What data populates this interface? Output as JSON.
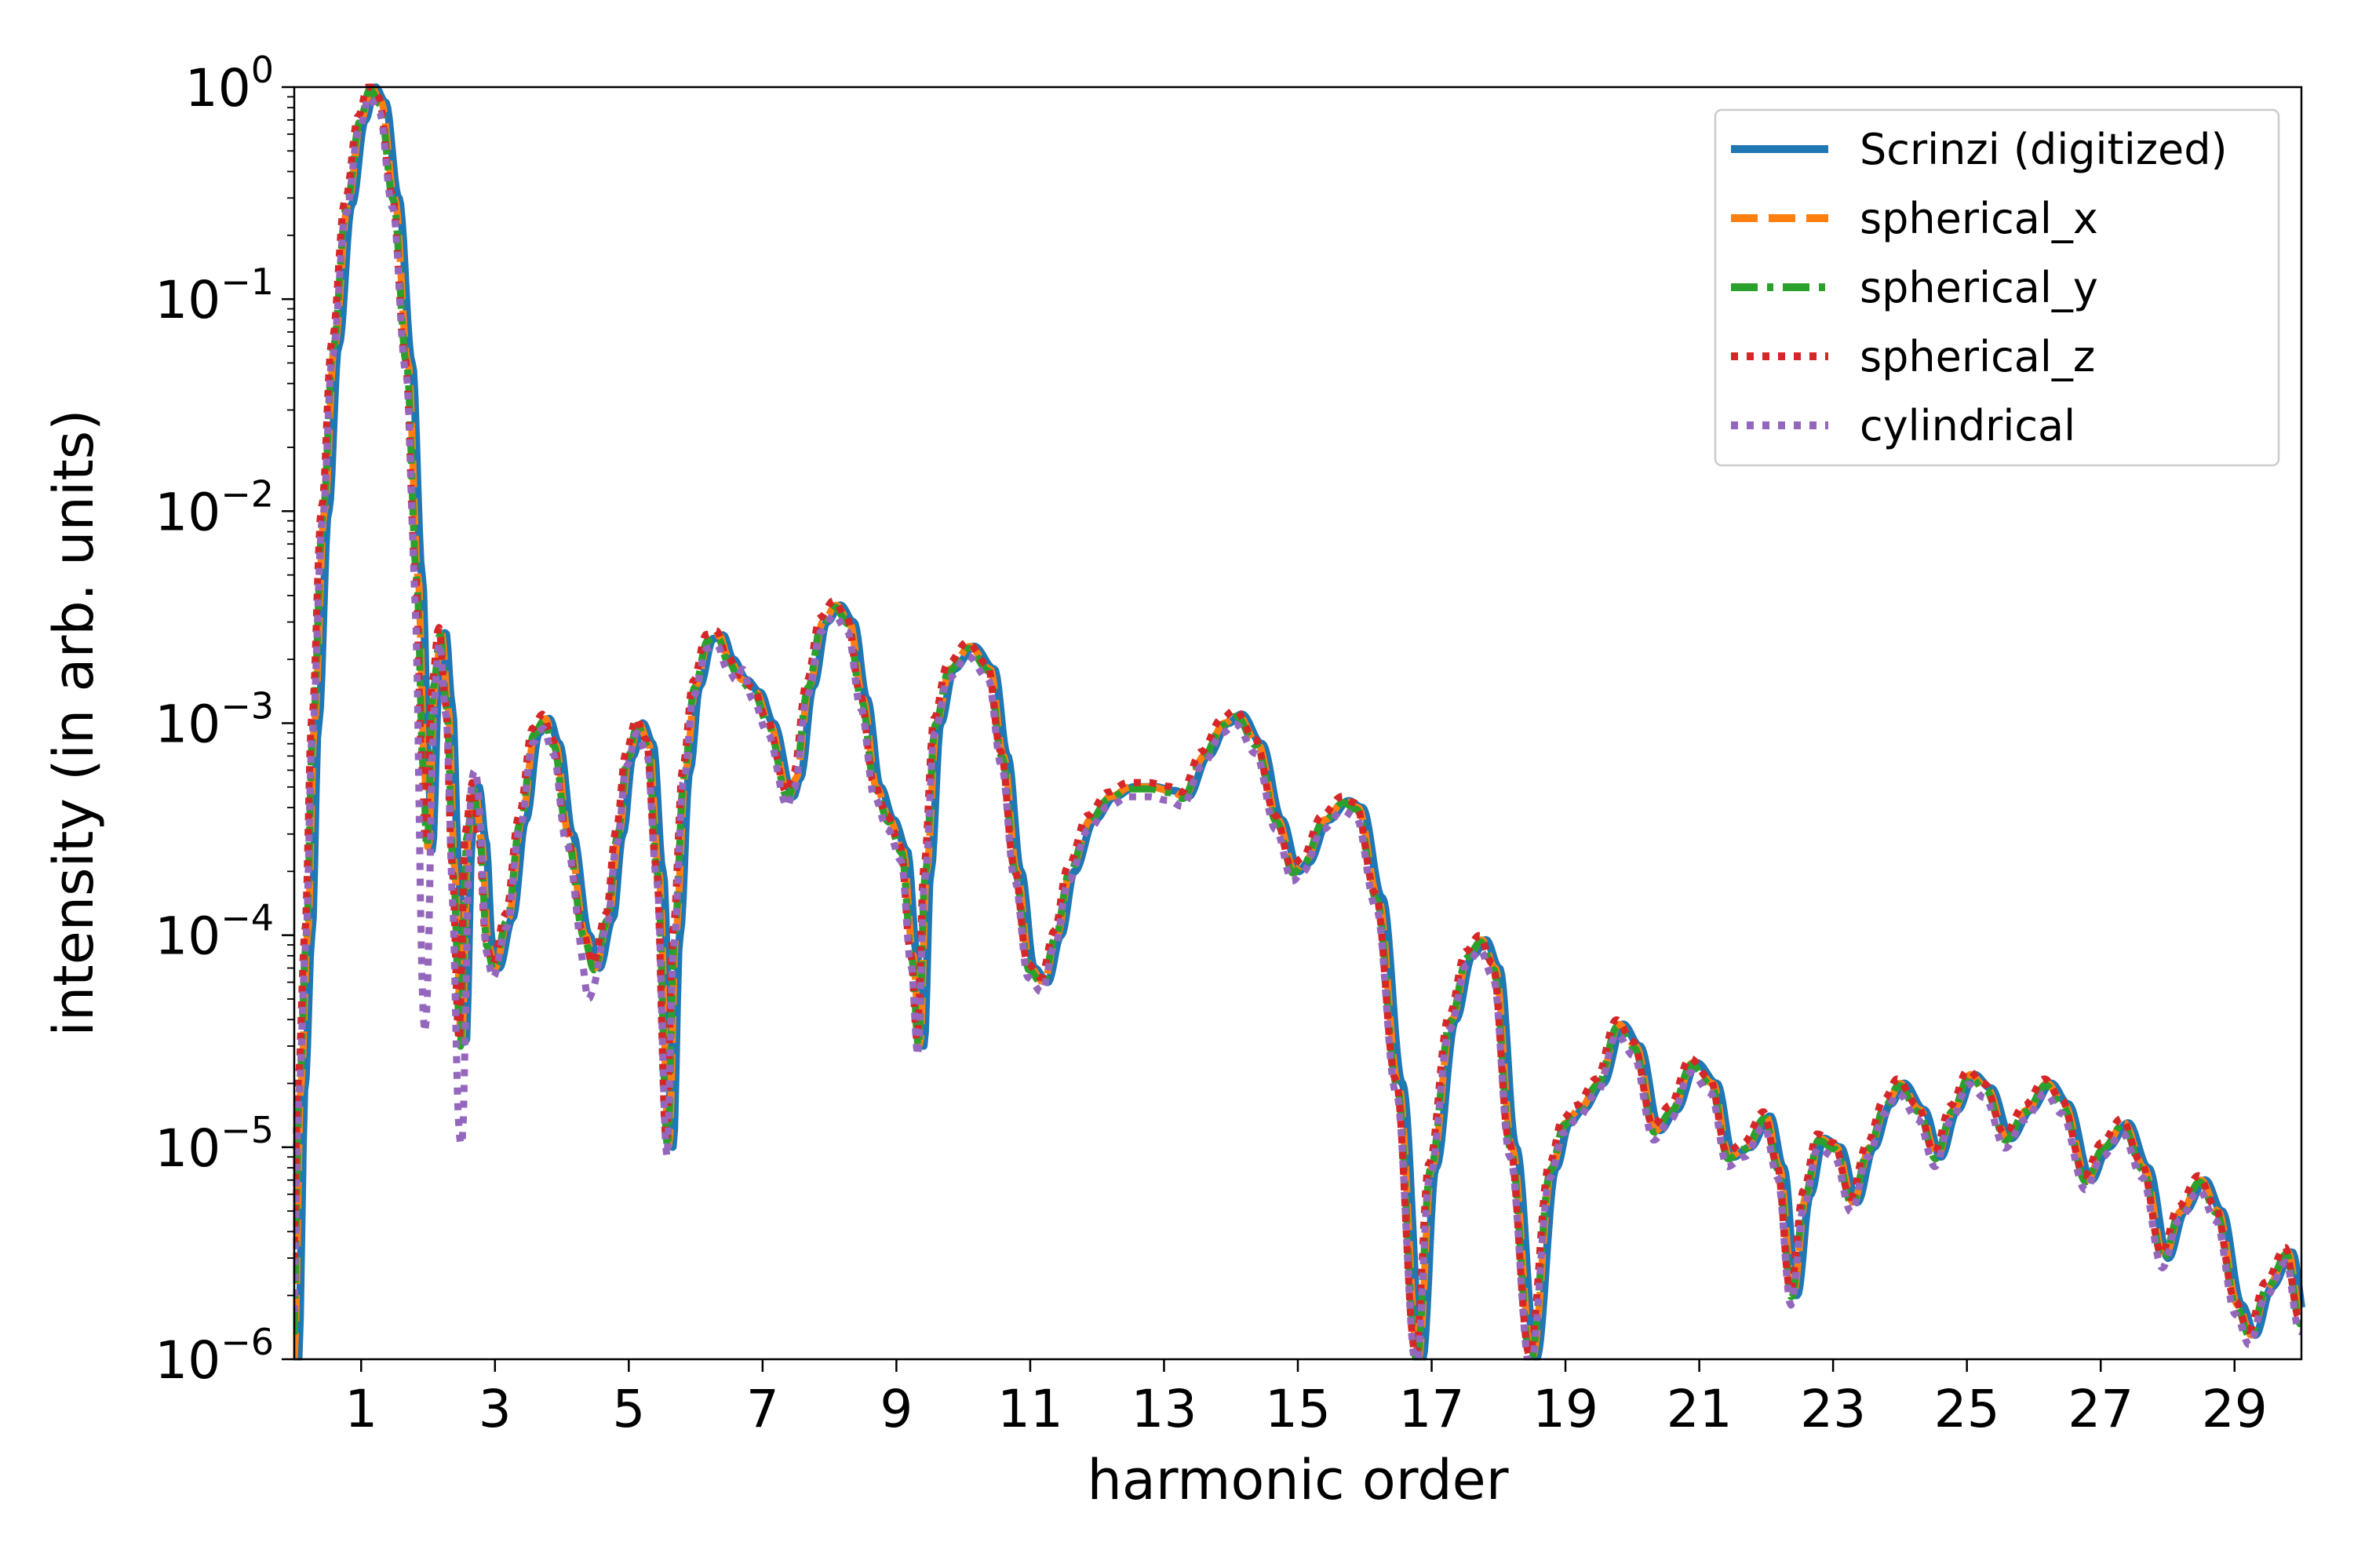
{
  "chart_data": {
    "type": "line",
    "title": "",
    "xlabel": "harmonic order",
    "ylabel": "intensity (in arb. units)",
    "xlim": [
      0,
      30
    ],
    "ylim": [
      1e-06,
      1
    ],
    "yscale": "log",
    "xticks": [
      1,
      3,
      5,
      7,
      9,
      11,
      13,
      15,
      17,
      19,
      21,
      23,
      25,
      27,
      29
    ],
    "xtick_labels": [
      "1",
      "3",
      "5",
      "7",
      "9",
      "11",
      "13",
      "15",
      "17",
      "19",
      "21",
      "23",
      "25",
      "27",
      "29"
    ],
    "ytick_exponents": [
      -6,
      -5,
      -4,
      -3,
      -2,
      -1,
      0
    ],
    "ytick_base": "10",
    "grid": false,
    "legend_position": "top-right",
    "series": [
      {
        "name": "Scrinzi (digitized)",
        "color": "#1f77b4",
        "style": "solid"
      },
      {
        "name": "spherical_x",
        "color": "#ff7f0e",
        "style": "dashed"
      },
      {
        "name": "spherical_y",
        "color": "#2ca02c",
        "style": "dashdot"
      },
      {
        "name": "spherical_z",
        "color": "#d62728",
        "style": "dotted"
      },
      {
        "name": "cylindrical",
        "color": "#9467bd",
        "style": "dotted"
      }
    ],
    "profile": [
      [
        0.0,
        1e-06
      ],
      [
        0.1,
        2e-05
      ],
      [
        0.2,
        0.0001
      ],
      [
        0.3,
        0.001
      ],
      [
        0.45,
        0.01
      ],
      [
        0.6,
        0.06
      ],
      [
        0.8,
        0.28
      ],
      [
        1.0,
        0.7
      ],
      [
        1.15,
        1.0
      ],
      [
        1.3,
        0.85
      ],
      [
        1.5,
        0.3
      ],
      [
        1.7,
        0.05
      ],
      [
        1.85,
        0.005
      ],
      [
        1.95,
        0.0006
      ],
      [
        2.0,
        0.00025
      ],
      [
        2.1,
        0.0015
      ],
      [
        2.2,
        0.0027
      ],
      [
        2.3,
        0.0012
      ],
      [
        2.4,
        0.0002
      ],
      [
        2.5,
        3e-05
      ],
      [
        2.6,
        0.0003
      ],
      [
        2.7,
        0.0005
      ],
      [
        2.8,
        0.00028
      ],
      [
        2.9,
        9e-05
      ],
      [
        3.0,
        7e-05
      ],
      [
        3.2,
        0.00012
      ],
      [
        3.4,
        0.00035
      ],
      [
        3.6,
        0.0009
      ],
      [
        3.75,
        0.00105
      ],
      [
        3.9,
        0.0008
      ],
      [
        4.1,
        0.0003
      ],
      [
        4.35,
        0.0001
      ],
      [
        4.5,
        7e-05
      ],
      [
        4.7,
        0.00012
      ],
      [
        4.85,
        0.0003
      ],
      [
        5.0,
        0.0007
      ],
      [
        5.15,
        0.001
      ],
      [
        5.3,
        0.0008
      ],
      [
        5.45,
        0.0002
      ],
      [
        5.6,
        1e-05
      ],
      [
        5.7,
        0.0001
      ],
      [
        5.85,
        0.0006
      ],
      [
        6.0,
        0.0015
      ],
      [
        6.2,
        0.0025
      ],
      [
        6.35,
        0.0026
      ],
      [
        6.5,
        0.002
      ],
      [
        6.7,
        0.0016
      ],
      [
        6.9,
        0.0014
      ],
      [
        7.1,
        0.001
      ],
      [
        7.4,
        0.00045
      ],
      [
        7.5,
        0.00055
      ],
      [
        7.7,
        0.0015
      ],
      [
        7.9,
        0.003
      ],
      [
        8.1,
        0.0036
      ],
      [
        8.3,
        0.003
      ],
      [
        8.5,
        0.0013
      ],
      [
        8.7,
        0.0005
      ],
      [
        8.9,
        0.00035
      ],
      [
        9.1,
        0.00025
      ],
      [
        9.25,
        8e-05
      ],
      [
        9.35,
        3e-05
      ],
      [
        9.45,
        0.0002
      ],
      [
        9.6,
        0.001
      ],
      [
        9.8,
        0.0018
      ],
      [
        10.1,
        0.0023
      ],
      [
        10.4,
        0.0018
      ],
      [
        10.6,
        0.0007
      ],
      [
        10.8,
        0.0002
      ],
      [
        11.0,
        7e-05
      ],
      [
        11.2,
        6e-05
      ],
      [
        11.4,
        0.0001
      ],
      [
        11.6,
        0.0002
      ],
      [
        11.9,
        0.00035
      ],
      [
        12.2,
        0.00045
      ],
      [
        12.5,
        0.0005
      ],
      [
        12.8,
        0.0005
      ],
      [
        13.1,
        0.00048
      ],
      [
        13.3,
        0.00045
      ],
      [
        13.6,
        0.0007
      ],
      [
        13.9,
        0.001
      ],
      [
        14.1,
        0.0011
      ],
      [
        14.4,
        0.0008
      ],
      [
        14.7,
        0.00035
      ],
      [
        14.95,
        0.0002
      ],
      [
        15.1,
        0.00022
      ],
      [
        15.4,
        0.00035
      ],
      [
        15.7,
        0.00043
      ],
      [
        15.9,
        0.0004
      ],
      [
        16.2,
        0.00015
      ],
      [
        16.5,
        2e-05
      ],
      [
        16.8,
        1e-06
      ],
      [
        17.0,
        8e-06
      ],
      [
        17.3,
        4e-05
      ],
      [
        17.55,
        8e-05
      ],
      [
        17.75,
        9.5e-05
      ],
      [
        17.95,
        7e-05
      ],
      [
        18.2,
        1e-05
      ],
      [
        18.5,
        1e-06
      ],
      [
        18.8,
        8e-06
      ],
      [
        19.0,
        1.3e-05
      ],
      [
        19.2,
        1.5e-05
      ],
      [
        19.5,
        2e-05
      ],
      [
        19.8,
        3.8e-05
      ],
      [
        20.05,
        3e-05
      ],
      [
        20.35,
        1.2e-05
      ],
      [
        20.6,
        1.5e-05
      ],
      [
        20.9,
        2.5e-05
      ],
      [
        21.2,
        2e-05
      ],
      [
        21.45,
        9e-06
      ],
      [
        21.7,
        1e-05
      ],
      [
        22.0,
        1.4e-05
      ],
      [
        22.2,
        8e-06
      ],
      [
        22.4,
        2e-06
      ],
      [
        22.6,
        6e-06
      ],
      [
        22.8,
        1.1e-05
      ],
      [
        23.05,
        1e-05
      ],
      [
        23.3,
        5.5e-06
      ],
      [
        23.55,
        1e-05
      ],
      [
        23.8,
        1.6e-05
      ],
      [
        24.0,
        2e-05
      ],
      [
        24.3,
        1.5e-05
      ],
      [
        24.55,
        9e-06
      ],
      [
        24.8,
        1.5e-05
      ],
      [
        25.05,
        2.2e-05
      ],
      [
        25.3,
        1.9e-05
      ],
      [
        25.6,
        1.1e-05
      ],
      [
        25.9,
        1.5e-05
      ],
      [
        26.2,
        2e-05
      ],
      [
        26.45,
        1.6e-05
      ],
      [
        26.8,
        7e-06
      ],
      [
        27.05,
        1e-05
      ],
      [
        27.35,
        1.3e-05
      ],
      [
        27.65,
        8e-06
      ],
      [
        27.95,
        3e-06
      ],
      [
        28.2,
        5e-06
      ],
      [
        28.5,
        7e-06
      ],
      [
        28.75,
        5e-06
      ],
      [
        29.05,
        1.8e-06
      ],
      [
        29.25,
        1.3e-06
      ],
      [
        29.5,
        2.2e-06
      ],
      [
        29.8,
        3.2e-06
      ],
      [
        30.0,
        1.5e-06
      ]
    ],
    "cylindrical_dips": [
      [
        1.95,
        3.5e-05
      ],
      [
        2.5,
        1e-05
      ],
      [
        2.7,
        0.0006
      ],
      [
        4.4,
        5e-05
      ],
      [
        6.7,
        0.0018
      ]
    ]
  }
}
